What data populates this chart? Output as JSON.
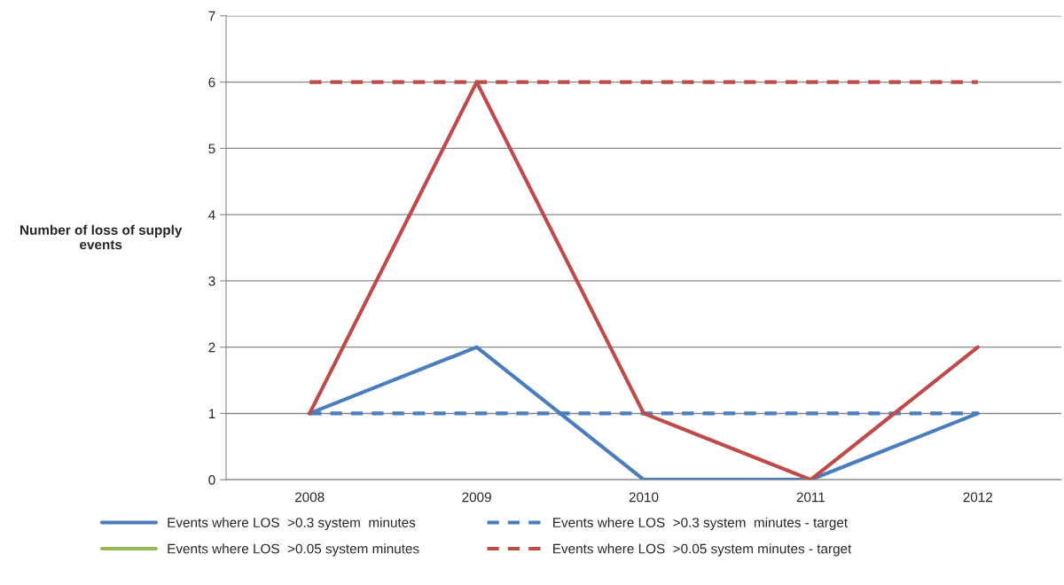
{
  "chart_data": {
    "type": "line",
    "ylabel": "Number of loss of supply events",
    "categories": [
      "2008",
      "2009",
      "2010",
      "2011",
      "2012"
    ],
    "series": [
      {
        "name": "Events where LOS  >0.3 system  minutes",
        "color": "#4a7ebb",
        "values": [
          1,
          2,
          0,
          0,
          1
        ],
        "line_style": "solid"
      },
      {
        "name": "Events where LOS  >0.05 system minutes",
        "color": "#98b954",
        "values": [
          null,
          null,
          null,
          null,
          null
        ],
        "line_style": "solid"
      },
      {
        "name": "Events where LOS  >0.3 system  minutes - target",
        "color": "#4a7ebb",
        "values": [
          1,
          1,
          1,
          1,
          1
        ],
        "line_style": "dashed"
      },
      {
        "name": "Events where LOS  >0.05 system minutes - target",
        "color": "#be4b48",
        "values": [
          6,
          6,
          6,
          6,
          6
        ],
        "line_style": "dashed"
      },
      {
        "color": "#be4b48",
        "values": [
          1,
          6,
          1,
          0,
          2
        ],
        "line_style": "solid"
      }
    ],
    "ylim": [
      0,
      7
    ],
    "yticks": [
      0,
      1,
      2,
      3,
      4,
      5,
      6,
      7
    ],
    "grid": "y",
    "legend": "bottom",
    "marker": "none"
  }
}
